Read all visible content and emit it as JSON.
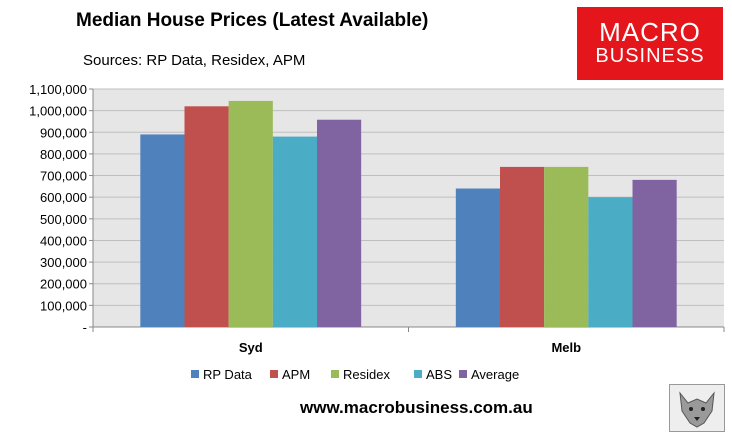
{
  "header": {
    "title": "Median House Prices (Latest Available)",
    "sources": "Sources: RP Data, Residex, APM"
  },
  "logo": {
    "line1": "MACRO",
    "line2": "BUSINESS"
  },
  "footer": {
    "website": "www.macrobusiness.com.au"
  },
  "colors": {
    "plot_bg": "#e6e6e6",
    "gridline": "#bfbfbf",
    "series": [
      "#4f81bd",
      "#c0504d",
      "#9bbb59",
      "#4bacc6",
      "#8064a2"
    ],
    "brand": "#e4161c"
  },
  "chart_data": {
    "type": "bar",
    "title": "Median House Prices (Latest Available)",
    "subtitle": "Sources: RP Data, Residex, APM",
    "categories": [
      "Syd",
      "Melb"
    ],
    "series": [
      {
        "name": "RP Data",
        "values": [
          890000,
          640000
        ]
      },
      {
        "name": "APM",
        "values": [
          1020000,
          740000
        ]
      },
      {
        "name": "Residex",
        "values": [
          1045000,
          740000
        ]
      },
      {
        "name": "ABS",
        "values": [
          880000,
          600000
        ]
      },
      {
        "name": "Average",
        "values": [
          958000,
          680000
        ]
      }
    ],
    "ylim": [
      0,
      1100000
    ],
    "yticks": [
      "-",
      "100,000",
      "200,000",
      "300,000",
      "400,000",
      "500,000",
      "600,000",
      "700,000",
      "800,000",
      "900,000",
      "1,000,000",
      "1,100,000"
    ],
    "grid": true,
    "legend_position": "bottom"
  }
}
